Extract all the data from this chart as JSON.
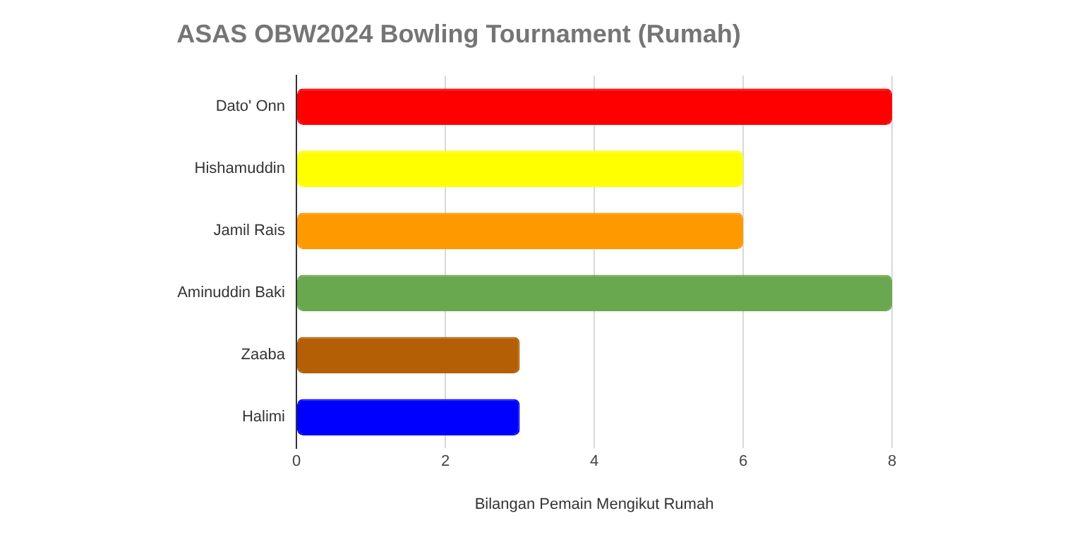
{
  "chart_data": {
    "type": "bar",
    "orientation": "horizontal",
    "title": "ASAS OBW2024 Bowling Tournament (Rumah)",
    "xlabel": "Bilangan Pemain Mengikut Rumah",
    "categories": [
      "Dato' Onn",
      "Hishamuddin",
      "Jamil Rais",
      "Aminuddin Baki",
      "Zaaba",
      "Halimi"
    ],
    "values": [
      8,
      6,
      6,
      8,
      3,
      3
    ],
    "colors": [
      "#ff0000",
      "#ffff00",
      "#ff9900",
      "#6aa84f",
      "#b45f06",
      "#0000ff"
    ],
    "xlim": [
      0,
      8
    ],
    "xticks": [
      0,
      2,
      4,
      6,
      8
    ],
    "grid": "x",
    "legend": false
  }
}
